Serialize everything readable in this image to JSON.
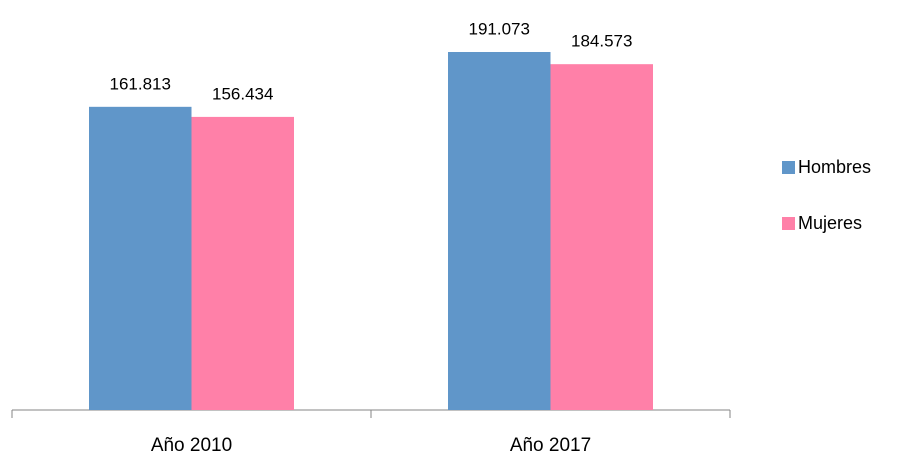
{
  "chart_data": {
    "type": "bar",
    "categories": [
      "Año 2010",
      "Año 2017"
    ],
    "series": [
      {
        "name": "Hombres",
        "color": "#6096c9",
        "values": [
          161813,
          191073
        ],
        "value_labels": [
          "161.813",
          "191.073"
        ]
      },
      {
        "name": "Mujeres",
        "color": "#ff80a8",
        "values": [
          156434,
          184573
        ],
        "value_labels": [
          "156.434",
          "184.573"
        ]
      }
    ],
    "legend": "right"
  }
}
